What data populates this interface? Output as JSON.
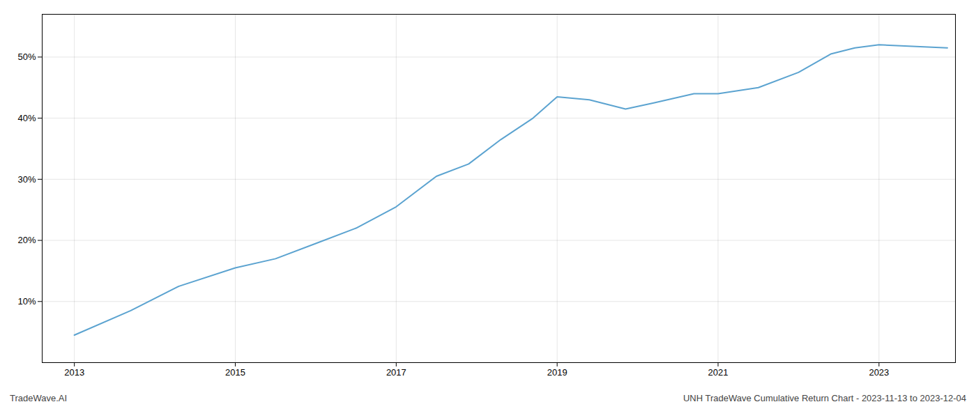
{
  "chart_data": {
    "type": "line",
    "title": "UNH TradeWave Cumulative Return Chart - 2023-11-13 to 2023-12-04",
    "annotations": [
      "TradeWave.AI"
    ],
    "x": [
      2013.0,
      2013.7,
      2014.3,
      2015.0,
      2015.5,
      2016.0,
      2016.5,
      2017.0,
      2017.5,
      2017.9,
      2018.3,
      2018.7,
      2019.0,
      2019.4,
      2019.85,
      2020.2,
      2020.7,
      2021.0,
      2021.5,
      2022.0,
      2022.4,
      2022.7,
      2023.0,
      2023.85
    ],
    "values": [
      4.5,
      8.5,
      12.5,
      15.5,
      17.0,
      19.5,
      22.0,
      25.5,
      30.5,
      32.5,
      36.5,
      40.0,
      43.5,
      43.0,
      41.5,
      42.5,
      44.0,
      44.0,
      45.0,
      47.5,
      50.5,
      51.5,
      52.0,
      51.5
    ],
    "color": "#5ba3d0",
    "xlim": [
      2012.6,
      2023.95
    ],
    "ylim": [
      0,
      57
    ],
    "xticks": [
      2013,
      2015,
      2017,
      2019,
      2021,
      2023
    ],
    "yticks": [
      {
        "value": 10,
        "label": "10%"
      },
      {
        "value": 20,
        "label": "20%"
      },
      {
        "value": 30,
        "label": "30%"
      },
      {
        "value": 40,
        "label": "40%"
      },
      {
        "value": 50,
        "label": "50%"
      }
    ],
    "grid": true
  }
}
